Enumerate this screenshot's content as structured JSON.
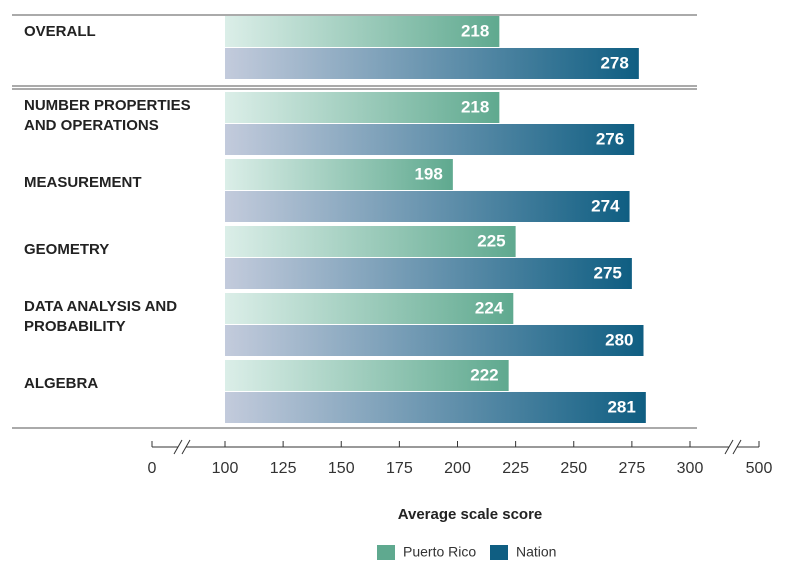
{
  "chart_data": {
    "type": "bar",
    "orientation": "horizontal",
    "categories": [
      "OVERALL",
      "NUMBER PROPERTIES AND OPERATIONS",
      "MEASUREMENT",
      "GEOMETRY",
      "DATA ANALYSIS AND PROBABILITY",
      "ALGEBRA"
    ],
    "series": [
      {
        "name": "Puerto Rico",
        "color": "#5fa98f",
        "values": [
          218,
          218,
          198,
          225,
          224,
          222
        ]
      },
      {
        "name": "Nation",
        "color": "#0f5e82",
        "values": [
          278,
          276,
          274,
          275,
          280,
          281
        ]
      }
    ],
    "xlim": [
      0,
      500
    ],
    "axis_breaks": [
      [
        0,
        100
      ],
      [
        300,
        500
      ]
    ],
    "xticks": [
      0,
      100,
      125,
      150,
      175,
      200,
      225,
      250,
      275,
      300,
      500
    ],
    "xlabel": "Average scale score",
    "legend": "bottom"
  }
}
